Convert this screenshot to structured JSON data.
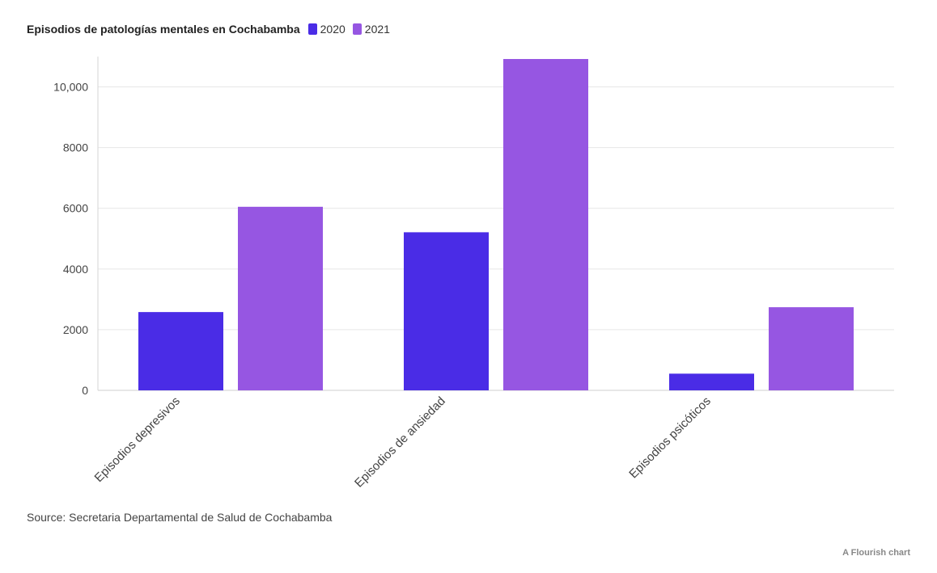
{
  "chart_data": {
    "type": "bar",
    "title": "Episodios de patologías mentales en Cochabamba",
    "categories": [
      "Episodios depresivos",
      "Episodios de ansiedad",
      "Episodios psicóticos"
    ],
    "series": [
      {
        "name": "2020",
        "color": "#4a2ce6",
        "values": [
          2580,
          5210,
          550
        ]
      },
      {
        "name": "2021",
        "color": "#9656e2",
        "values": [
          6050,
          10920,
          2740
        ]
      }
    ],
    "ylim": [
      0,
      11000
    ],
    "yticks": [
      0,
      2000,
      4000,
      6000,
      8000,
      10000
    ],
    "ytick_labels": [
      "0",
      "2000",
      "4000",
      "6000",
      "8000",
      "10,000"
    ],
    "legend_position": "top-left",
    "grid": true
  },
  "footer": {
    "source": "Source: Secretaria Departamental de Salud de Cochabamba",
    "credit": "A Flourish chart"
  }
}
